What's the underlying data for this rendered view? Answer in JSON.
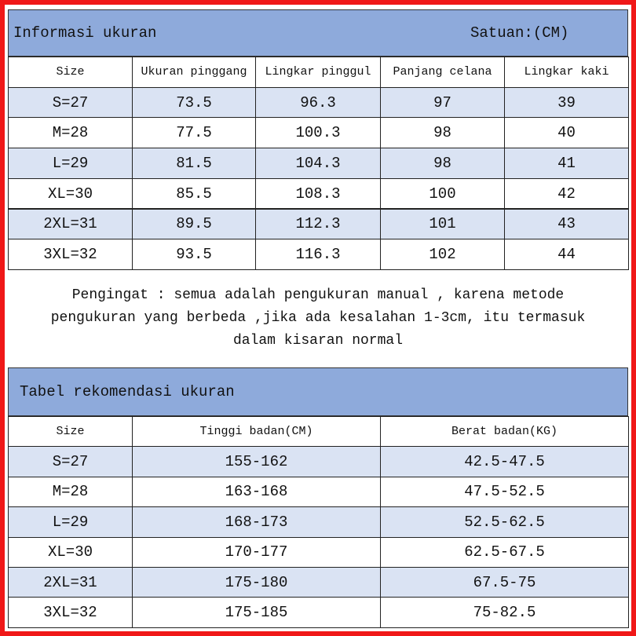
{
  "header": {
    "title": "Informasi ukuran",
    "unit": "Satuan:(CM)"
  },
  "table": {
    "columns": [
      "Size",
      "Ukuran pinggang",
      "Lingkar pinggul",
      "Panjang celana",
      "Lingkar kaki"
    ],
    "rows": [
      [
        "S=27",
        "73.5",
        "96.3",
        "97",
        "39"
      ],
      [
        "M=28",
        "77.5",
        "100.3",
        "98",
        "40"
      ],
      [
        "L=29",
        "81.5",
        "104.3",
        "98",
        "41"
      ],
      [
        "XL=30",
        "85.5",
        "108.3",
        "100",
        "42"
      ],
      [
        "2XL=31",
        "89.5",
        "112.3",
        "101",
        "43"
      ],
      [
        "3XL=32",
        "93.5",
        "116.3",
        "102",
        "44"
      ]
    ]
  },
  "note": [
    "Pengingat : semua adalah pengukuran manual , karena metode",
    "pengukuran yang berbeda ,jika ada kesalahan 1-3cm, itu termasuk",
    "dalam kisaran normal"
  ],
  "header2": {
    "title": "Tabel rekomendasi ukuran"
  },
  "table2": {
    "columns": [
      "Size",
      "Tinggi badan(CM)",
      "Berat badan(KG)"
    ],
    "rows": [
      [
        "S=27",
        "155-162",
        "42.5-47.5"
      ],
      [
        "M=28",
        "163-168",
        "47.5-52.5"
      ],
      [
        "L=29",
        "168-173",
        "52.5-62.5"
      ],
      [
        "XL=30",
        "170-177",
        "62.5-67.5"
      ],
      [
        "2XL=31",
        "175-180",
        "67.5-75"
      ],
      [
        "3XL=32",
        "175-185",
        "75-82.5"
      ]
    ]
  }
}
